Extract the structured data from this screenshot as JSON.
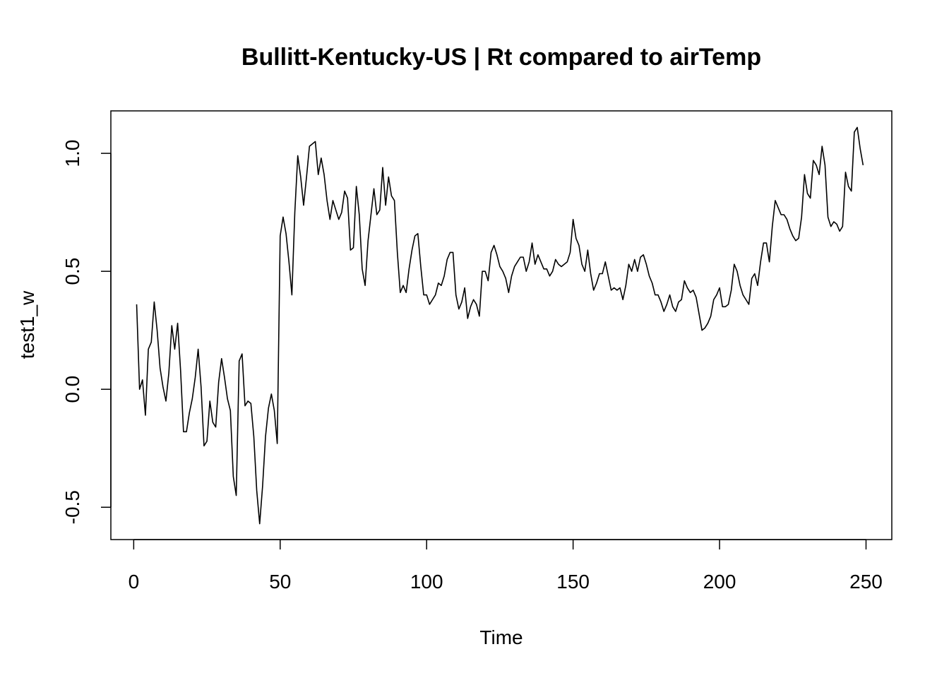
{
  "chart_data": {
    "type": "line",
    "title": "Bullitt-Kentucky-US | Rt compared to airTemp",
    "xlabel": "Time",
    "ylabel": "test1_w",
    "xlim": [
      -7.8,
      258.8
    ],
    "ylim": [
      -0.637,
      1.18
    ],
    "x_ticks": [
      0,
      50,
      100,
      150,
      200,
      250
    ],
    "x_tick_labels": [
      "0",
      "50",
      "100",
      "150",
      "200",
      "250"
    ],
    "y_ticks": [
      -0.5,
      0.0,
      0.5,
      1.0
    ],
    "y_tick_labels": [
      "-0.5",
      "0.0",
      "0.5",
      "1.0"
    ],
    "grid": false,
    "line_color": "#000000",
    "series": [
      {
        "x_start": 1,
        "values": [
          0.36,
          0.0,
          0.04,
          -0.11,
          0.17,
          0.2,
          0.37,
          0.25,
          0.09,
          0.01,
          -0.05,
          0.07,
          0.27,
          0.17,
          0.28,
          0.08,
          -0.18,
          -0.18,
          -0.1,
          -0.04,
          0.05,
          0.17,
          0.01,
          -0.24,
          -0.22,
          -0.05,
          -0.14,
          -0.16,
          0.03,
          0.13,
          0.05,
          -0.04,
          -0.09,
          -0.37,
          -0.45,
          0.12,
          0.15,
          -0.07,
          -0.05,
          -0.06,
          -0.2,
          -0.43,
          -0.57,
          -0.41,
          -0.2,
          -0.08,
          -0.02,
          -0.09,
          -0.23,
          0.65,
          0.73,
          0.66,
          0.54,
          0.4,
          0.75,
          0.99,
          0.9,
          0.78,
          0.9,
          1.03,
          1.04,
          1.05,
          0.91,
          0.98,
          0.91,
          0.8,
          0.72,
          0.8,
          0.76,
          0.72,
          0.75,
          0.84,
          0.81,
          0.59,
          0.6,
          0.86,
          0.74,
          0.51,
          0.44,
          0.63,
          0.74,
          0.85,
          0.74,
          0.76,
          0.94,
          0.78,
          0.9,
          0.82,
          0.8,
          0.58,
          0.41,
          0.44,
          0.41,
          0.51,
          0.59,
          0.65,
          0.66,
          0.52,
          0.4,
          0.4,
          0.36,
          0.38,
          0.4,
          0.45,
          0.44,
          0.48,
          0.55,
          0.58,
          0.58,
          0.4,
          0.34,
          0.37,
          0.43,
          0.3,
          0.35,
          0.38,
          0.36,
          0.31,
          0.5,
          0.5,
          0.46,
          0.58,
          0.61,
          0.57,
          0.52,
          0.5,
          0.47,
          0.41,
          0.48,
          0.52,
          0.54,
          0.56,
          0.56,
          0.5,
          0.54,
          0.62,
          0.53,
          0.57,
          0.54,
          0.51,
          0.51,
          0.48,
          0.5,
          0.55,
          0.53,
          0.52,
          0.53,
          0.54,
          0.58,
          0.72,
          0.64,
          0.61,
          0.53,
          0.5,
          0.59,
          0.49,
          0.42,
          0.45,
          0.49,
          0.49,
          0.54,
          0.48,
          0.42,
          0.43,
          0.42,
          0.43,
          0.38,
          0.44,
          0.53,
          0.5,
          0.55,
          0.5,
          0.56,
          0.57,
          0.53,
          0.48,
          0.45,
          0.4,
          0.4,
          0.37,
          0.33,
          0.36,
          0.4,
          0.35,
          0.33,
          0.37,
          0.38,
          0.46,
          0.43,
          0.41,
          0.42,
          0.39,
          0.32,
          0.25,
          0.26,
          0.28,
          0.31,
          0.38,
          0.4,
          0.43,
          0.35,
          0.35,
          0.36,
          0.42,
          0.53,
          0.5,
          0.44,
          0.4,
          0.38,
          0.36,
          0.47,
          0.49,
          0.44,
          0.54,
          0.62,
          0.62,
          0.54,
          0.69,
          0.8,
          0.77,
          0.74,
          0.74,
          0.72,
          0.68,
          0.65,
          0.63,
          0.64,
          0.73,
          0.91,
          0.83,
          0.81,
          0.97,
          0.95,
          0.91,
          1.03,
          0.95,
          0.73,
          0.69,
          0.71,
          0.7,
          0.67,
          0.69,
          0.92,
          0.86,
          0.84,
          1.09,
          1.11,
          1.02,
          0.95
        ]
      }
    ]
  }
}
